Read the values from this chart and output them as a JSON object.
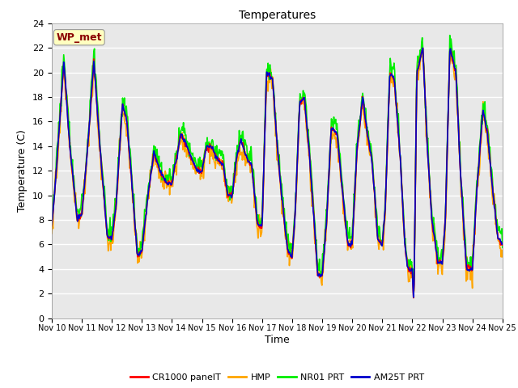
{
  "title": "Temperatures",
  "ylabel": "Temperature (C)",
  "xlabel": "Time",
  "annotation": "WP_met",
  "annotation_color": "#8B0000",
  "annotation_bg": "#FFFFC0",
  "ylim": [
    0,
    24
  ],
  "yticks": [
    0,
    2,
    4,
    6,
    8,
    10,
    12,
    14,
    16,
    18,
    20,
    22,
    24
  ],
  "x_labels": [
    "Nov 10",
    "Nov 11",
    "Nov 12",
    "Nov 13",
    "Nov 14",
    "Nov 15",
    "Nov 16",
    "Nov 17",
    "Nov 18",
    "Nov 19",
    "Nov 20",
    "Nov 21",
    "Nov 22",
    "Nov 23",
    "Nov 24",
    "Nov 25"
  ],
  "series": {
    "CR1000 panelT": {
      "color": "#FF0000",
      "lw": 1.2
    },
    "HMP": {
      "color": "#FFA500",
      "lw": 1.2
    },
    "NR01 PRT": {
      "color": "#00EE00",
      "lw": 1.2
    },
    "AM25T PRT": {
      "color": "#0000CC",
      "lw": 1.2
    }
  },
  "bg_color": "#E8E8E8",
  "grid_color": "#FFFFFF",
  "n_points": 720
}
